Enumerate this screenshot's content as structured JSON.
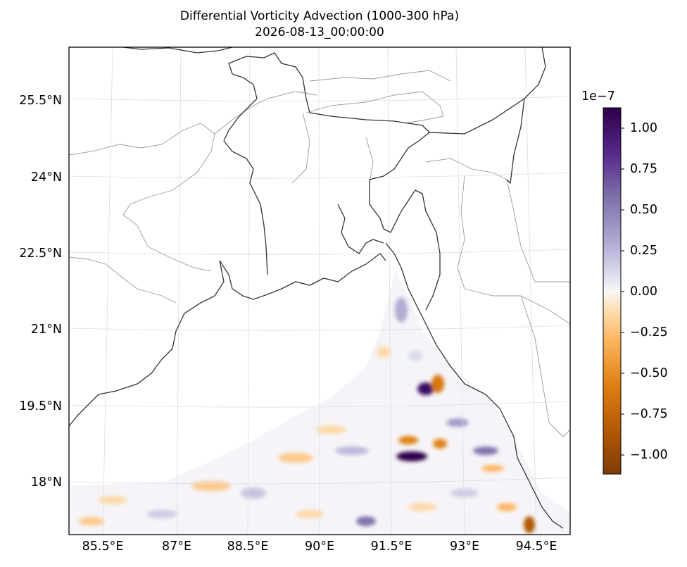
{
  "title": "Differential Vorticity Advection (1000-300 hPa)",
  "subtitle": "2026-08-13_00:00:00",
  "map": {
    "lat_ticks": [
      "25.5°N",
      "24°N",
      "22.5°N",
      "21°N",
      "19.5°N",
      "18°N"
    ],
    "lon_ticks": [
      "85.5°E",
      "87°E",
      "88.5°E",
      "90°E",
      "91.5°E",
      "93°E",
      "94.5°E"
    ],
    "extent": {
      "lon": [
        84.8,
        94.8
      ],
      "lat": [
        17.1,
        26.7
      ]
    },
    "field": "differential vorticity advection"
  },
  "colorbar": {
    "multiplier": "1e−7",
    "labels": [
      "1.00",
      "0.75",
      "0.50",
      "0.25",
      "0.00",
      "−0.25",
      "−0.50",
      "−0.75",
      "−1.00"
    ],
    "range": [
      -1.1e-07,
      1.1e-07
    ],
    "colormap": "PuOr",
    "colors": {
      "top": "#2d004b",
      "mid": "#f7f7f7",
      "bottom": "#7f3b08"
    }
  }
}
